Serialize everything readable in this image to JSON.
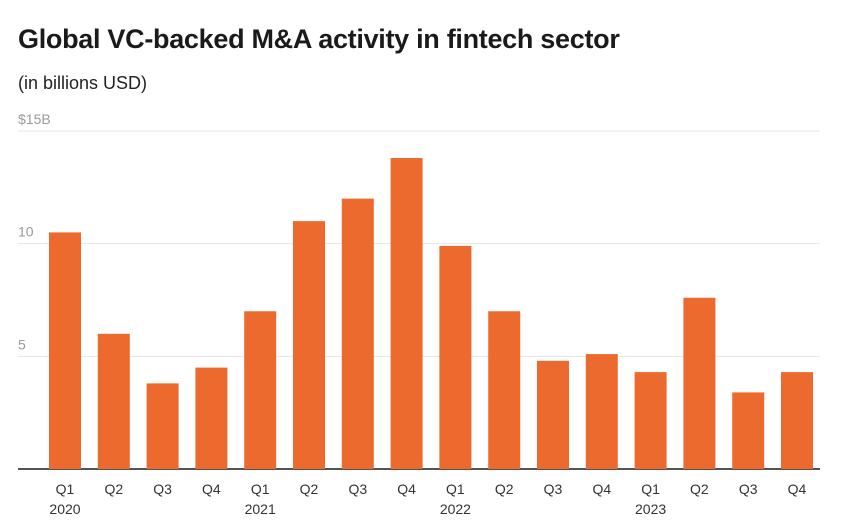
{
  "header": {
    "title": "Global VC-backed M&A activity in fintech sector",
    "subtitle": "(in billions USD)"
  },
  "colors": {
    "bar": "#ec6a2e",
    "grid": "#e6e6e6",
    "axis": "#1a1a1a"
  },
  "chart_data": {
    "type": "bar",
    "title": "Global VC-backed M&A activity in fintech sector",
    "subtitle": "(in billions USD)",
    "xlabel": "",
    "ylabel": "",
    "ylim": [
      0,
      15
    ],
    "grid": true,
    "y_ticks": [
      {
        "value": 5,
        "label": "5"
      },
      {
        "value": 10,
        "label": "10"
      },
      {
        "value": 15,
        "label": "$15B"
      }
    ],
    "categories": [
      "Q1 2020",
      "Q2 2020",
      "Q3 2020",
      "Q4 2020",
      "Q1 2021",
      "Q2 2021",
      "Q3 2021",
      "Q4 2021",
      "Q1 2022",
      "Q2 2022",
      "Q3 2022",
      "Q4 2022",
      "Q1 2023",
      "Q2 2023",
      "Q3 2023",
      "Q4 2023"
    ],
    "tick_labels": [
      "Q1",
      "Q2",
      "Q3",
      "Q4",
      "Q1",
      "Q2",
      "Q3",
      "Q4",
      "Q1",
      "Q2",
      "Q3",
      "Q4",
      "Q1",
      "Q2",
      "Q3",
      "Q4"
    ],
    "year_labels": [
      "2020",
      "",
      "",
      "",
      "2021",
      "",
      "",
      "",
      "2022",
      "",
      "",
      "",
      "2023",
      "",
      "",
      ""
    ],
    "values": [
      10.5,
      6.0,
      3.8,
      4.5,
      7.0,
      11.0,
      12.0,
      13.8,
      9.9,
      7.0,
      4.8,
      5.1,
      4.3,
      7.6,
      3.4,
      4.3
    ]
  }
}
